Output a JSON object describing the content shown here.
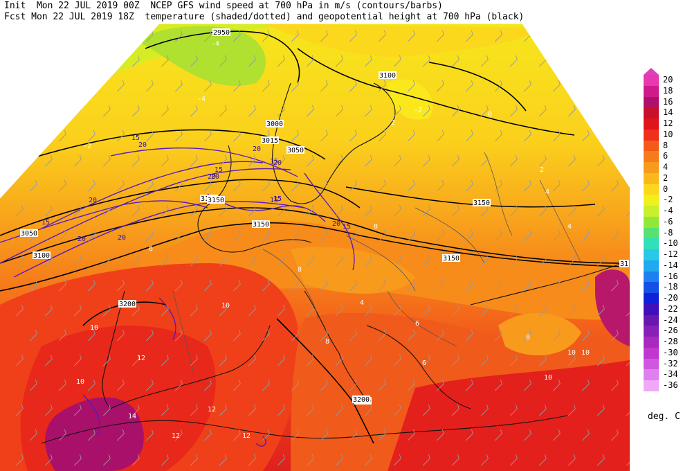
{
  "header": {
    "line1": "Init  Mon 22 JUL 2019 00Z  NCEP GFS wind speed at 700 hPa in m/s (contours/barbs)",
    "line2": "Fcst Mon 22 JUL 2019 18Z  temperature (shaded/dotted) and geopotential height at 700 hPa (black)"
  },
  "colorbar": {
    "levels": [
      "20",
      "18",
      "16",
      "14",
      "12",
      "10",
      "8",
      "6",
      "4",
      "2",
      "0",
      "-2",
      "-4",
      "-6",
      "-8",
      "-10",
      "-12",
      "-14",
      "-16",
      "-18",
      "-20",
      "-22",
      "-24",
      "-26",
      "-28",
      "-30",
      "-32",
      "-34",
      "-36"
    ],
    "colors": [
      "#e838b0",
      "#d01a8a",
      "#b0106a",
      "#c8102a",
      "#e0141c",
      "#f0301a",
      "#f45a18",
      "#f67c1a",
      "#f89a1c",
      "#fab81c",
      "#fcd81c",
      "#f0f01c",
      "#c8f02c",
      "#90e838",
      "#58e070",
      "#30e0b8",
      "#28c8e8",
      "#20a8f0",
      "#1c80f0",
      "#1450e8",
      "#1020d8",
      "#4010b8",
      "#6818b0",
      "#8820b8",
      "#a828c0",
      "#c038d0",
      "#d058e0",
      "#e080f0",
      "#f0a8f8"
    ],
    "units": "deg. C"
  },
  "map_labels": {
    "heights": [
      "2950",
      "3000",
      "3015",
      "3050",
      "3100",
      "3100",
      "3150",
      "3150",
      "3150",
      "3200",
      "3200",
      "3150",
      "3050",
      "3100",
      "3150",
      "3200",
      "31"
    ],
    "wind": [
      "15",
      "20",
      "20",
      "15",
      "20",
      "20",
      "15",
      "20",
      "20",
      "15",
      "20",
      "15",
      "20",
      "15",
      "20",
      "15",
      "15"
    ],
    "temps": [
      "-4",
      "-4",
      "-2",
      "-2",
      "0",
      "0",
      "2",
      "2",
      "4",
      "4",
      "6",
      "6",
      "8",
      "8",
      "10",
      "10",
      "10",
      "12",
      "12",
      "12",
      "14",
      "12",
      "10",
      "6",
      "4",
      "8",
      "10",
      "10"
    ]
  }
}
